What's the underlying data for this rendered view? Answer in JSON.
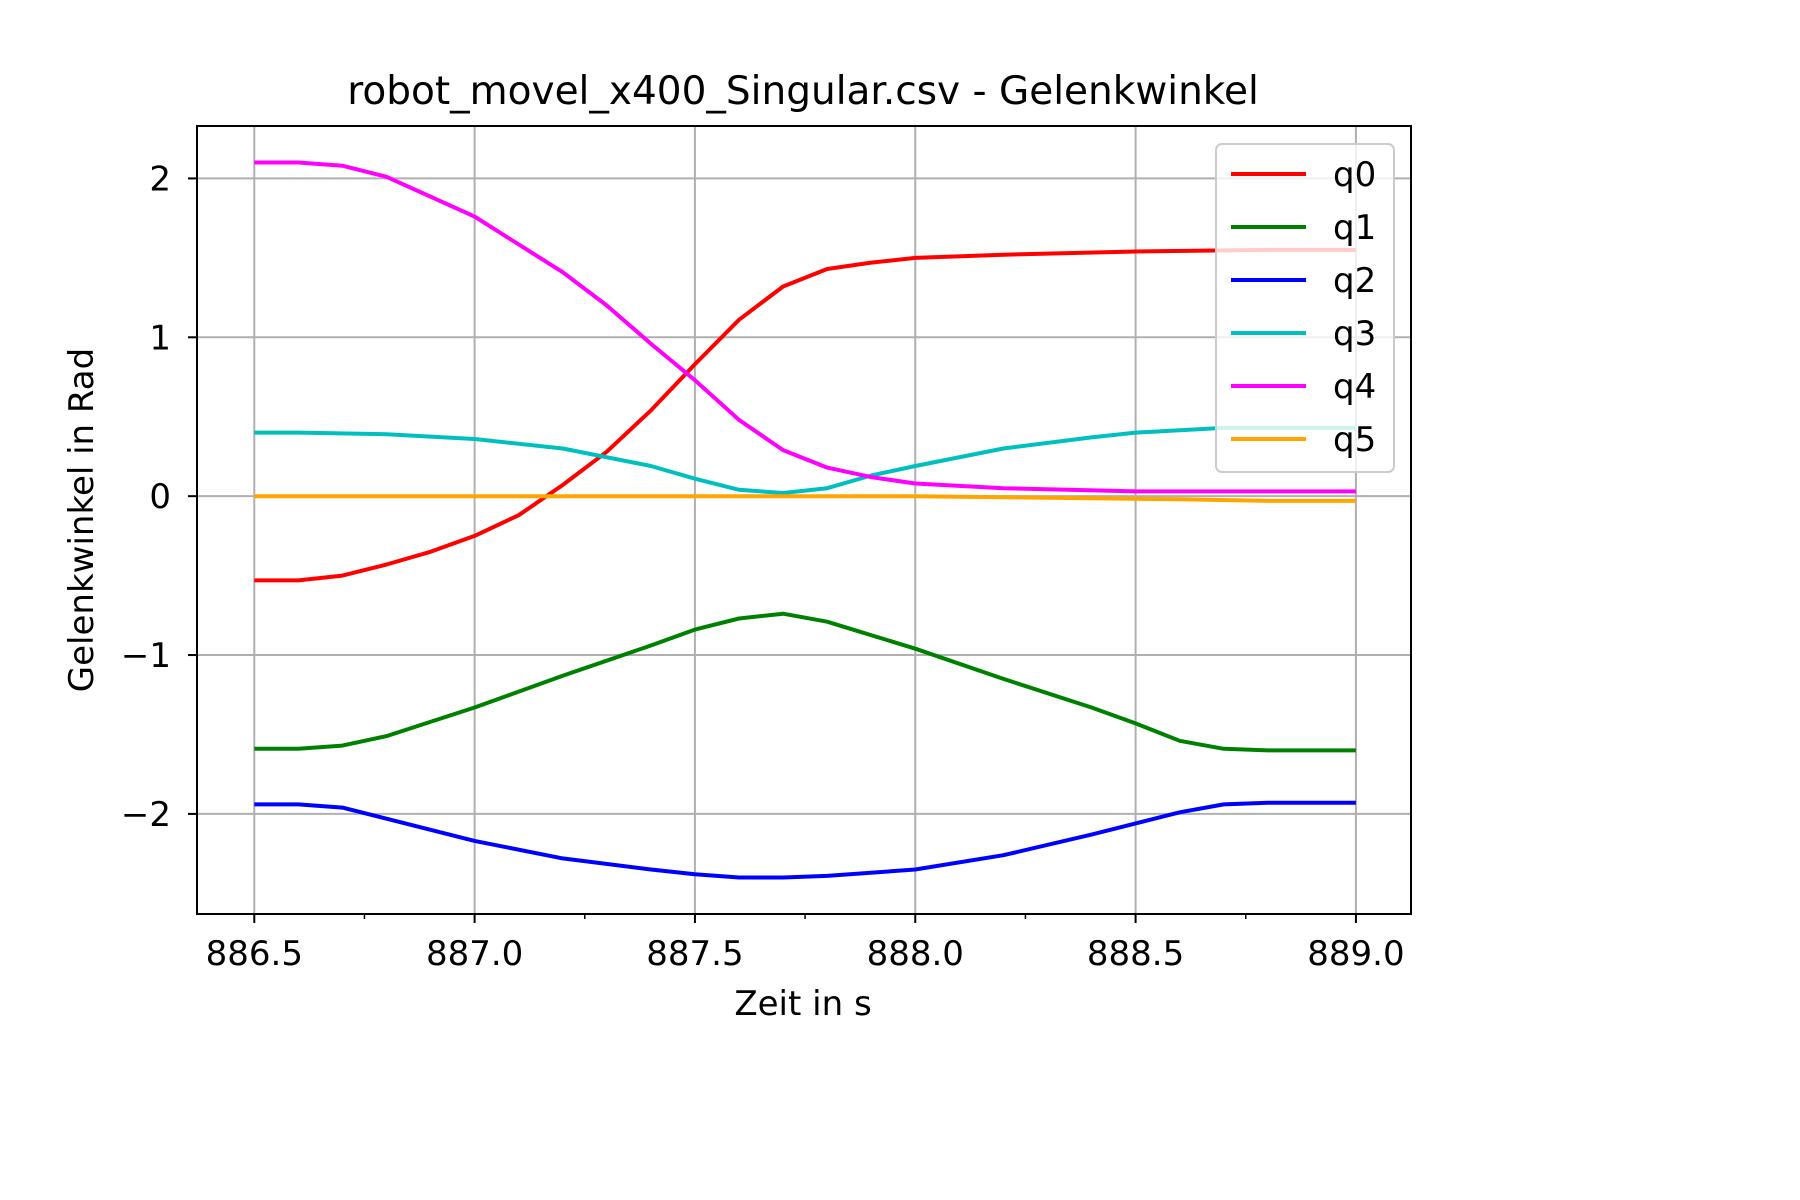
{
  "chart_data": {
    "type": "line",
    "title": "robot_movel_x400_Singular.csv - Gelenkwinkel",
    "xlabel": "Zeit in s",
    "ylabel": "Gelenkwinkel in Rad",
    "xlim": [
      886.37,
      889.125
    ],
    "ylim": [
      -2.63,
      2.33
    ],
    "xticks": [
      886.5,
      887.0,
      887.5,
      888.0,
      888.5,
      889.0
    ],
    "xtick_labels": [
      "886.5",
      "887.0",
      "887.5",
      "888.0",
      "888.5",
      "889.0"
    ],
    "xminor_ticks": [
      886.75,
      887.25,
      887.75,
      888.25,
      888.75
    ],
    "yticks": [
      -2,
      -1,
      0,
      1,
      2
    ],
    "ytick_labels": [
      "−2",
      "−1",
      "0",
      "1",
      "2"
    ],
    "grid": true,
    "legend_position": "upper right",
    "series": [
      {
        "name": "q0",
        "color": "#ff0000",
        "points": [
          [
            886.5,
            -0.53
          ],
          [
            886.6,
            -0.53
          ],
          [
            886.7,
            -0.5
          ],
          [
            886.8,
            -0.43
          ],
          [
            886.9,
            -0.35
          ],
          [
            887.0,
            -0.25
          ],
          [
            887.1,
            -0.12
          ],
          [
            887.2,
            0.07
          ],
          [
            887.3,
            0.28
          ],
          [
            887.4,
            0.54
          ],
          [
            887.5,
            0.83
          ],
          [
            887.6,
            1.11
          ],
          [
            887.7,
            1.32
          ],
          [
            887.8,
            1.43
          ],
          [
            887.9,
            1.47
          ],
          [
            888.0,
            1.5
          ],
          [
            888.2,
            1.52
          ],
          [
            888.5,
            1.54
          ],
          [
            888.8,
            1.55
          ],
          [
            889.0,
            1.55
          ]
        ]
      },
      {
        "name": "q1",
        "color": "#008000",
        "points": [
          [
            886.5,
            -1.59
          ],
          [
            886.6,
            -1.59
          ],
          [
            886.7,
            -1.57
          ],
          [
            886.8,
            -1.51
          ],
          [
            887.0,
            -1.33
          ],
          [
            887.2,
            -1.13
          ],
          [
            887.4,
            -0.94
          ],
          [
            887.5,
            -0.84
          ],
          [
            887.6,
            -0.77
          ],
          [
            887.7,
            -0.74
          ],
          [
            887.8,
            -0.79
          ],
          [
            888.0,
            -0.96
          ],
          [
            888.2,
            -1.15
          ],
          [
            888.4,
            -1.33
          ],
          [
            888.5,
            -1.43
          ],
          [
            888.6,
            -1.54
          ],
          [
            888.7,
            -1.59
          ],
          [
            888.8,
            -1.6
          ],
          [
            889.0,
            -1.6
          ]
        ]
      },
      {
        "name": "q2",
        "color": "#0000ff",
        "points": [
          [
            886.5,
            -1.94
          ],
          [
            886.6,
            -1.94
          ],
          [
            886.7,
            -1.96
          ],
          [
            886.8,
            -2.03
          ],
          [
            887.0,
            -2.17
          ],
          [
            887.2,
            -2.28
          ],
          [
            887.4,
            -2.35
          ],
          [
            887.5,
            -2.38
          ],
          [
            887.6,
            -2.4
          ],
          [
            887.7,
            -2.4
          ],
          [
            887.8,
            -2.39
          ],
          [
            888.0,
            -2.35
          ],
          [
            888.2,
            -2.26
          ],
          [
            888.4,
            -2.13
          ],
          [
            888.5,
            -2.06
          ],
          [
            888.6,
            -1.99
          ],
          [
            888.7,
            -1.94
          ],
          [
            888.8,
            -1.93
          ],
          [
            889.0,
            -1.93
          ]
        ]
      },
      {
        "name": "q3",
        "color": "#00bfbf",
        "points": [
          [
            886.5,
            0.4
          ],
          [
            886.6,
            0.4
          ],
          [
            886.8,
            0.39
          ],
          [
            887.0,
            0.36
          ],
          [
            887.2,
            0.3
          ],
          [
            887.4,
            0.19
          ],
          [
            887.5,
            0.11
          ],
          [
            887.6,
            0.04
          ],
          [
            887.7,
            0.02
          ],
          [
            887.8,
            0.05
          ],
          [
            887.9,
            0.13
          ],
          [
            888.0,
            0.19
          ],
          [
            888.2,
            0.3
          ],
          [
            888.4,
            0.37
          ],
          [
            888.5,
            0.4
          ],
          [
            888.7,
            0.43
          ],
          [
            889.0,
            0.43
          ]
        ]
      },
      {
        "name": "q4",
        "color": "#ff00ff",
        "points": [
          [
            886.5,
            2.1
          ],
          [
            886.6,
            2.1
          ],
          [
            886.7,
            2.08
          ],
          [
            886.8,
            2.01
          ],
          [
            887.0,
            1.76
          ],
          [
            887.2,
            1.41
          ],
          [
            887.3,
            1.2
          ],
          [
            887.4,
            0.96
          ],
          [
            887.5,
            0.73
          ],
          [
            887.6,
            0.48
          ],
          [
            887.7,
            0.29
          ],
          [
            887.8,
            0.18
          ],
          [
            887.9,
            0.12
          ],
          [
            888.0,
            0.08
          ],
          [
            888.2,
            0.05
          ],
          [
            888.5,
            0.03
          ],
          [
            889.0,
            0.03
          ]
        ]
      },
      {
        "name": "q5",
        "color": "#ffa500",
        "points": [
          [
            886.5,
            0.0
          ],
          [
            887.0,
            0.0
          ],
          [
            887.5,
            0.0
          ],
          [
            888.0,
            0.0
          ],
          [
            888.3,
            -0.01
          ],
          [
            888.6,
            -0.02
          ],
          [
            888.8,
            -0.03
          ],
          [
            889.0,
            -0.03
          ]
        ]
      }
    ]
  }
}
